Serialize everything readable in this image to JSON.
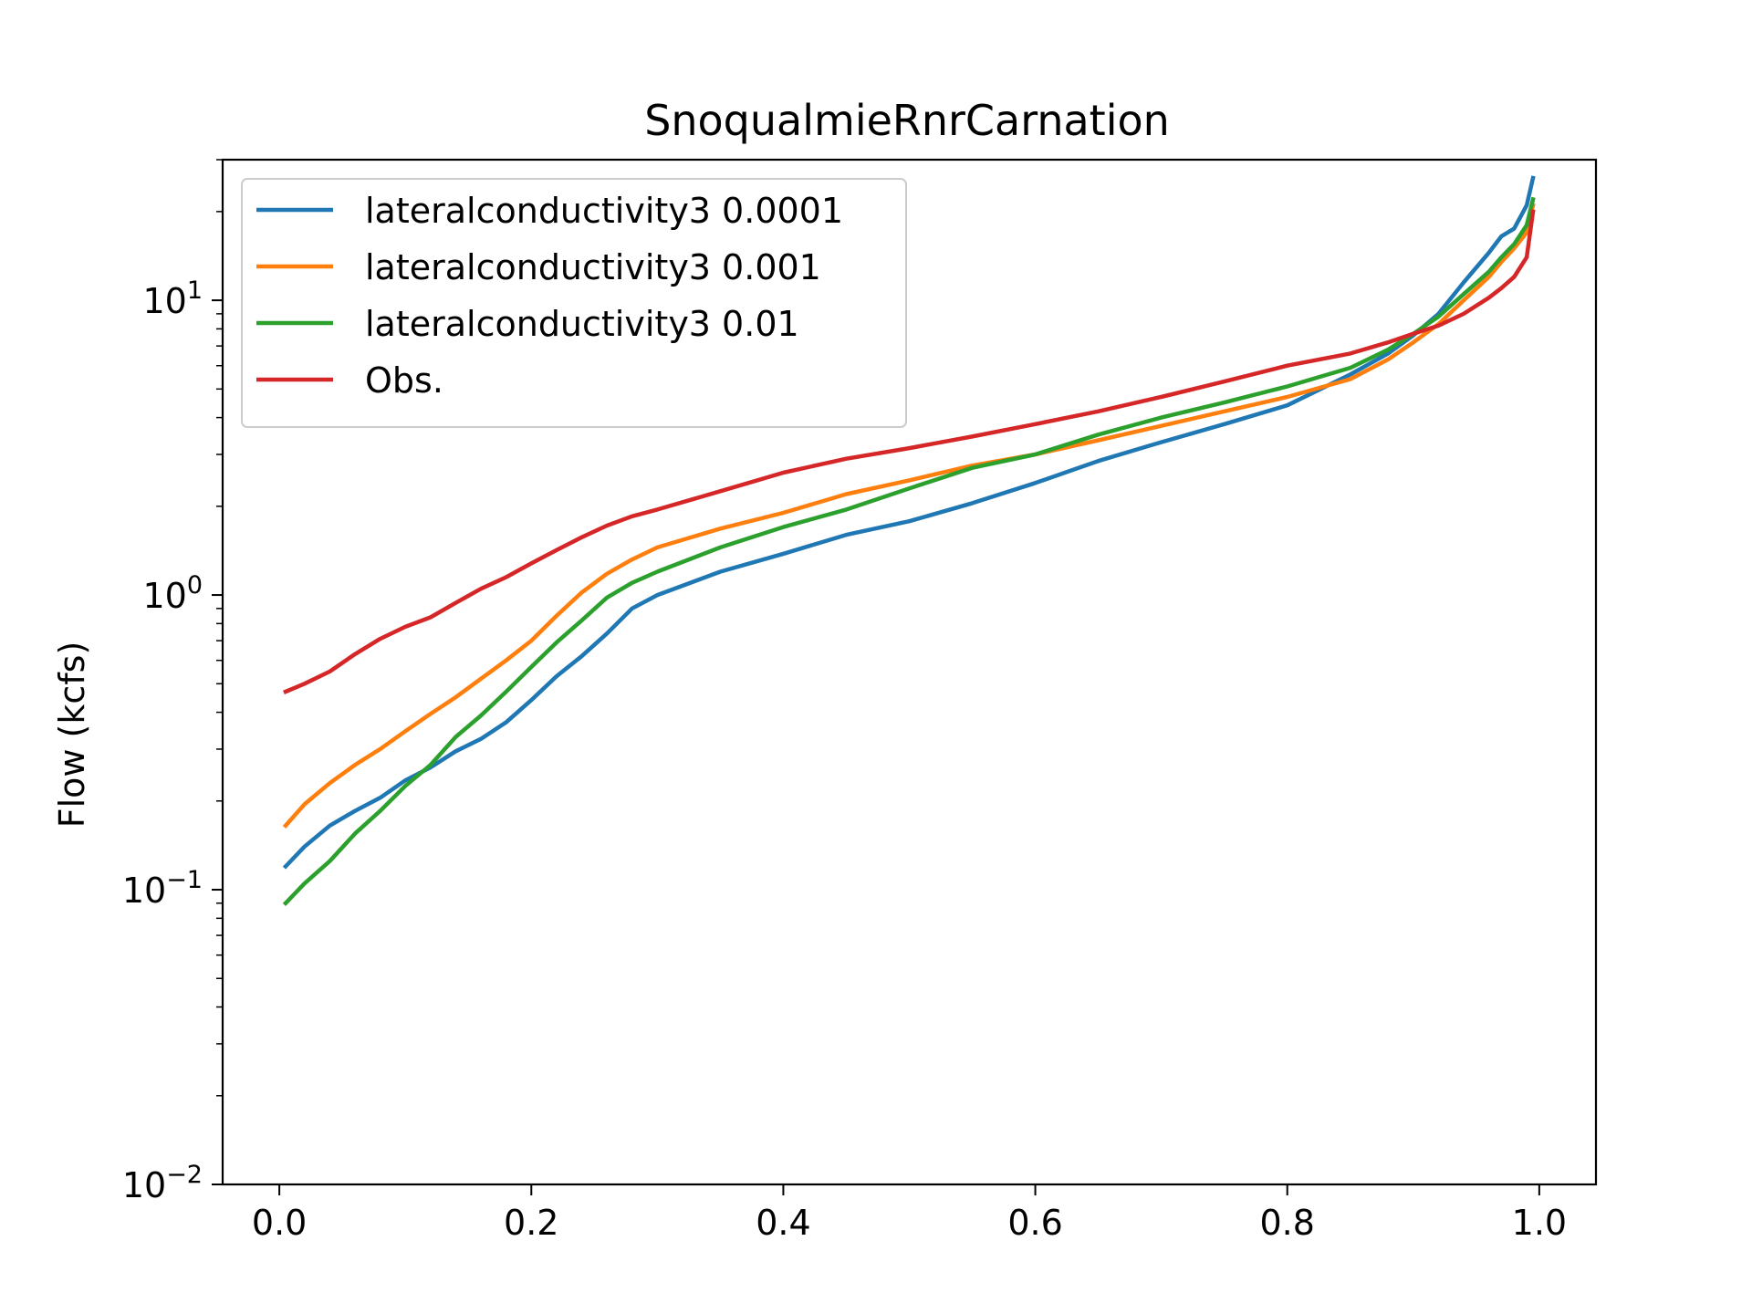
{
  "chart_data": {
    "type": "line",
    "title": "SnoqualmieRnrCarnation",
    "xlabel": "",
    "ylabel": "Flow (kcfs)",
    "xlim": [
      -0.045,
      1.045
    ],
    "ylim": [
      0.01,
      30
    ],
    "yscale": "log",
    "x_ticks": [
      {
        "value": 0.0,
        "label": "0.0"
      },
      {
        "value": 0.2,
        "label": "0.2"
      },
      {
        "value": 0.4,
        "label": "0.4"
      },
      {
        "value": 0.6,
        "label": "0.6"
      },
      {
        "value": 0.8,
        "label": "0.8"
      },
      {
        "value": 1.0,
        "label": "1.0"
      }
    ],
    "y_ticks": [
      {
        "value": 0.01,
        "base": "10",
        "exp": "−2"
      },
      {
        "value": 0.1,
        "base": "10",
        "exp": "−1"
      },
      {
        "value": 1,
        "base": "10",
        "exp": "0"
      },
      {
        "value": 10,
        "base": "10",
        "exp": "1"
      }
    ],
    "grid": false,
    "legend_position": "top-left",
    "x": [
      0.005,
      0.02,
      0.04,
      0.06,
      0.08,
      0.1,
      0.12,
      0.14,
      0.16,
      0.18,
      0.2,
      0.22,
      0.24,
      0.26,
      0.28,
      0.3,
      0.35,
      0.4,
      0.45,
      0.5,
      0.55,
      0.6,
      0.65,
      0.7,
      0.75,
      0.8,
      0.85,
      0.88,
      0.9,
      0.92,
      0.94,
      0.96,
      0.97,
      0.98,
      0.99,
      0.995
    ],
    "series": [
      {
        "name": "lateralconductivity3 0.0001",
        "color": "#1f77b4",
        "values": [
          0.12,
          0.14,
          0.165,
          0.185,
          0.205,
          0.235,
          0.26,
          0.295,
          0.325,
          0.37,
          0.44,
          0.53,
          0.62,
          0.74,
          0.9,
          1.0,
          1.2,
          1.38,
          1.6,
          1.78,
          2.05,
          2.4,
          2.85,
          3.3,
          3.8,
          4.4,
          5.6,
          6.6,
          7.6,
          9.0,
          11.5,
          14.5,
          16.5,
          17.5,
          21.0,
          26.0
        ]
      },
      {
        "name": "lateralconductivity3 0.001",
        "color": "#ff7f0e",
        "values": [
          0.165,
          0.195,
          0.23,
          0.265,
          0.3,
          0.345,
          0.395,
          0.45,
          0.52,
          0.6,
          0.7,
          0.85,
          1.02,
          1.18,
          1.32,
          1.45,
          1.68,
          1.9,
          2.2,
          2.45,
          2.75,
          3.0,
          3.35,
          3.75,
          4.2,
          4.7,
          5.4,
          6.3,
          7.2,
          8.3,
          10.0,
          12.0,
          13.5,
          15.0,
          17.0,
          21.0
        ]
      },
      {
        "name": "lateralconductivity3 0.01",
        "color": "#2ca02c",
        "values": [
          0.09,
          0.105,
          0.125,
          0.155,
          0.185,
          0.225,
          0.265,
          0.33,
          0.39,
          0.47,
          0.57,
          0.69,
          0.82,
          0.98,
          1.1,
          1.2,
          1.45,
          1.7,
          1.95,
          2.3,
          2.7,
          3.0,
          3.5,
          4.0,
          4.5,
          5.1,
          5.9,
          6.8,
          7.7,
          8.8,
          10.5,
          12.5,
          14.0,
          15.5,
          18.0,
          22.0
        ]
      },
      {
        "name": "Obs.",
        "color": "#d62728",
        "values": [
          0.47,
          0.5,
          0.55,
          0.63,
          0.71,
          0.78,
          0.84,
          0.94,
          1.05,
          1.15,
          1.28,
          1.42,
          1.57,
          1.72,
          1.85,
          1.95,
          2.25,
          2.6,
          2.9,
          3.15,
          3.45,
          3.8,
          4.2,
          4.7,
          5.3,
          6.0,
          6.6,
          7.2,
          7.7,
          8.2,
          9.0,
          10.2,
          11.0,
          12.0,
          14.0,
          20.0
        ]
      }
    ]
  }
}
